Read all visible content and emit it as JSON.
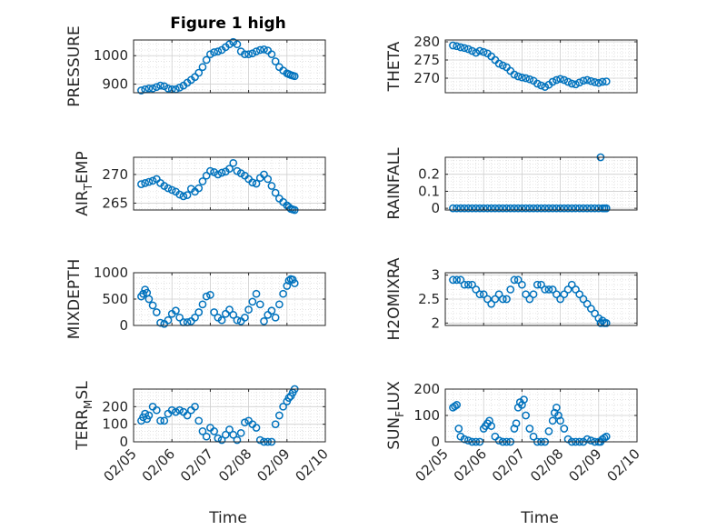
{
  "figure": {
    "title": "Figure 1 high",
    "xlabel": "Time",
    "marker_color": "#0072bd"
  },
  "chart_data": [
    {
      "type": "scatter",
      "ylabel": "PRESSURE",
      "xlim": [
        0,
        5
      ],
      "ylim": [
        870,
        1055
      ],
      "yticks": [
        900,
        1000
      ],
      "x_tick_labels": [
        "02/05",
        "02/06",
        "02/07",
        "02/08",
        "02/09",
        "02/10"
      ],
      "grid": true,
      "x": [
        0.2,
        0.3,
        0.4,
        0.5,
        0.6,
        0.7,
        0.8,
        0.9,
        1.0,
        1.1,
        1.2,
        1.3,
        1.4,
        1.5,
        1.6,
        1.7,
        1.8,
        1.9,
        2.0,
        2.1,
        2.2,
        2.3,
        2.4,
        2.5,
        2.6,
        2.7,
        2.8,
        2.9,
        3.0,
        3.1,
        3.2,
        3.3,
        3.4,
        3.5,
        3.6,
        3.7,
        3.8,
        3.9,
        4.0,
        4.05,
        4.1,
        4.15,
        4.2
      ],
      "y": [
        878,
        882,
        885,
        885,
        890,
        895,
        893,
        885,
        882,
        882,
        888,
        895,
        905,
        915,
        925,
        940,
        960,
        985,
        1005,
        1012,
        1015,
        1020,
        1030,
        1040,
        1048,
        1040,
        1015,
        1005,
        1005,
        1008,
        1015,
        1020,
        1022,
        1018,
        1005,
        980,
        960,
        948,
        938,
        935,
        932,
        930,
        928
      ]
    },
    {
      "type": "scatter",
      "ylabel": "THETA",
      "xlim": [
        0,
        5
      ],
      "ylim": [
        266,
        280.5
      ],
      "yticks": [
        270,
        275,
        280
      ],
      "x_tick_labels": [
        "02/05",
        "02/06",
        "02/07",
        "02/08",
        "02/09",
        "02/10"
      ],
      "grid": true,
      "x": [
        0.2,
        0.3,
        0.4,
        0.5,
        0.6,
        0.7,
        0.8,
        0.9,
        1.0,
        1.1,
        1.2,
        1.3,
        1.4,
        1.5,
        1.6,
        1.7,
        1.8,
        1.9,
        2.0,
        2.1,
        2.2,
        2.3,
        2.4,
        2.5,
        2.6,
        2.7,
        2.8,
        2.9,
        3.0,
        3.1,
        3.2,
        3.3,
        3.4,
        3.5,
        3.6,
        3.7,
        3.8,
        3.9,
        4.0,
        4.1,
        4.2
      ],
      "y": [
        279,
        278.8,
        278.5,
        278.3,
        278,
        277.5,
        277,
        277.5,
        277.2,
        276.8,
        276,
        275,
        274,
        273.5,
        273,
        272,
        271,
        270.5,
        270.2,
        270,
        269.7,
        269.3,
        268.5,
        268,
        267.6,
        268.2,
        269,
        269.5,
        269.8,
        269.5,
        269,
        268.5,
        268.3,
        268.8,
        269.3,
        269.5,
        269.2,
        268.9,
        268.7,
        269,
        269.1
      ]
    },
    {
      "type": "scatter",
      "ylabel": "AIR",
      "ylabel_sub": "T",
      "ylabel_tail": "EMP",
      "xlim": [
        0,
        5
      ],
      "ylim": [
        263.8,
        273
      ],
      "yticks": [
        265,
        270
      ],
      "x_tick_labels": [
        "02/05",
        "02/06",
        "02/07",
        "02/08",
        "02/09",
        "02/10"
      ],
      "grid": true,
      "x": [
        0.2,
        0.3,
        0.4,
        0.5,
        0.6,
        0.7,
        0.8,
        0.9,
        1.0,
        1.1,
        1.2,
        1.3,
        1.4,
        1.5,
        1.6,
        1.7,
        1.8,
        1.9,
        2.0,
        2.1,
        2.2,
        2.3,
        2.4,
        2.5,
        2.6,
        2.7,
        2.8,
        2.9,
        3.0,
        3.1,
        3.2,
        3.3,
        3.4,
        3.5,
        3.6,
        3.7,
        3.8,
        3.9,
        4.0,
        4.05,
        4.1,
        4.15,
        4.2
      ],
      "y": [
        268.3,
        268.5,
        268.7,
        268.9,
        269.2,
        268.5,
        268,
        267.6,
        267.3,
        267,
        266.5,
        266.2,
        266.4,
        267.5,
        267,
        267.6,
        268.8,
        269.8,
        270.6,
        270.4,
        270,
        270.3,
        270.5,
        271,
        272,
        270.6,
        270.2,
        269.8,
        269.2,
        268.6,
        268.4,
        269.4,
        270,
        269.2,
        268,
        266.8,
        265.8,
        265.2,
        264.6,
        264.3,
        264,
        263.9,
        263.8
      ]
    },
    {
      "type": "scatter",
      "ylabel": "RAINFALL",
      "xlim": [
        0,
        5
      ],
      "ylim": [
        -0.01,
        0.3
      ],
      "yticks": [
        0,
        0.1,
        0.2
      ],
      "x_tick_labels": [
        "02/05",
        "02/06",
        "02/07",
        "02/08",
        "02/09",
        "02/10"
      ],
      "grid": true,
      "x": [
        0.2,
        0.3,
        0.4,
        0.5,
        0.6,
        0.7,
        0.8,
        0.9,
        1.0,
        1.1,
        1.2,
        1.3,
        1.4,
        1.5,
        1.6,
        1.7,
        1.8,
        1.9,
        2.0,
        2.1,
        2.2,
        2.3,
        2.4,
        2.5,
        2.6,
        2.7,
        2.8,
        2.9,
        3.0,
        3.1,
        3.2,
        3.3,
        3.4,
        3.5,
        3.6,
        3.7,
        3.8,
        3.9,
        4.0,
        4.05,
        4.1,
        4.15,
        4.2
      ],
      "y": [
        0,
        0,
        0,
        0,
        0,
        0,
        0,
        0,
        0,
        0,
        0,
        0,
        0,
        0,
        0,
        0,
        0,
        0,
        0,
        0,
        0,
        0,
        0,
        0,
        0,
        0,
        0,
        0,
        0,
        0,
        0,
        0,
        0,
        0,
        0,
        0,
        0,
        0,
        0,
        0.3,
        0,
        0,
        0
      ]
    },
    {
      "type": "scatter",
      "ylabel": "MIXDEPTH",
      "xlim": [
        0,
        5
      ],
      "ylim": [
        0,
        1000
      ],
      "yticks": [
        0,
        500,
        1000
      ],
      "x_tick_labels": [
        "02/05",
        "02/06",
        "02/07",
        "02/08",
        "02/09",
        "02/10"
      ],
      "grid": true,
      "x": [
        0.2,
        0.25,
        0.3,
        0.35,
        0.4,
        0.5,
        0.6,
        0.7,
        0.8,
        0.9,
        1.0,
        1.1,
        1.2,
        1.3,
        1.4,
        1.5,
        1.6,
        1.7,
        1.8,
        1.9,
        2.0,
        2.1,
        2.2,
        2.3,
        2.4,
        2.5,
        2.6,
        2.7,
        2.8,
        2.9,
        3.0,
        3.1,
        3.2,
        3.3,
        3.4,
        3.5,
        3.6,
        3.7,
        3.8,
        3.9,
        4.0,
        4.05,
        4.1,
        4.15,
        4.2
      ],
      "y": [
        550,
        600,
        680,
        620,
        500,
        380,
        250,
        50,
        30,
        100,
        220,
        280,
        150,
        60,
        60,
        80,
        150,
        250,
        400,
        550,
        580,
        250,
        150,
        100,
        220,
        300,
        200,
        100,
        80,
        150,
        300,
        450,
        600,
        400,
        80,
        200,
        280,
        150,
        400,
        600,
        750,
        850,
        880,
        870,
        800
      ]
    },
    {
      "type": "scatter",
      "ylabel": "H2OMIXRA",
      "xlim": [
        0,
        5
      ],
      "ylim": [
        1.95,
        3.05
      ],
      "yticks": [
        2,
        2.5,
        3
      ],
      "x_tick_labels": [
        "02/05",
        "02/06",
        "02/07",
        "02/08",
        "02/09",
        "02/10"
      ],
      "grid": true,
      "x": [
        0.2,
        0.3,
        0.4,
        0.5,
        0.6,
        0.7,
        0.8,
        0.9,
        1.0,
        1.1,
        1.2,
        1.3,
        1.4,
        1.5,
        1.6,
        1.7,
        1.8,
        1.9,
        2.0,
        2.1,
        2.2,
        2.3,
        2.4,
        2.5,
        2.6,
        2.7,
        2.8,
        2.9,
        3.0,
        3.1,
        3.2,
        3.3,
        3.4,
        3.5,
        3.6,
        3.7,
        3.8,
        3.9,
        4.0,
        4.05,
        4.1,
        4.15,
        4.2
      ],
      "y": [
        2.9,
        2.9,
        2.9,
        2.8,
        2.8,
        2.8,
        2.7,
        2.6,
        2.6,
        2.5,
        2.4,
        2.5,
        2.6,
        2.5,
        2.5,
        2.7,
        2.9,
        2.9,
        2.8,
        2.6,
        2.5,
        2.6,
        2.8,
        2.8,
        2.7,
        2.7,
        2.7,
        2.6,
        2.5,
        2.6,
        2.7,
        2.8,
        2.7,
        2.6,
        2.5,
        2.4,
        2.3,
        2.2,
        2.1,
        2.0,
        2.05,
        2.0,
        2.0
      ]
    },
    {
      "type": "scatter",
      "ylabel": "TERR",
      "ylabel_sub": "M",
      "ylabel_tail": "SL",
      "xlim": [
        0,
        5
      ],
      "ylim": [
        0,
        300
      ],
      "yticks": [
        0,
        100,
        200
      ],
      "x_tick_labels": [
        "02/05",
        "02/06",
        "02/07",
        "02/08",
        "02/09",
        "02/10"
      ],
      "grid": true,
      "x": [
        0.2,
        0.25,
        0.3,
        0.35,
        0.4,
        0.5,
        0.6,
        0.7,
        0.8,
        0.9,
        1.0,
        1.1,
        1.2,
        1.3,
        1.4,
        1.5,
        1.6,
        1.7,
        1.8,
        1.9,
        2.0,
        2.1,
        2.2,
        2.3,
        2.4,
        2.5,
        2.6,
        2.7,
        2.8,
        2.9,
        3.0,
        3.1,
        3.2,
        3.3,
        3.4,
        3.5,
        3.6,
        3.7,
        3.8,
        3.9,
        4.0,
        4.05,
        4.1,
        4.15,
        4.2
      ],
      "y": [
        120,
        140,
        160,
        130,
        150,
        200,
        180,
        120,
        120,
        160,
        180,
        170,
        180,
        170,
        150,
        180,
        200,
        120,
        60,
        30,
        80,
        60,
        20,
        10,
        40,
        70,
        40,
        10,
        50,
        110,
        120,
        100,
        80,
        10,
        0,
        0,
        0,
        100,
        150,
        200,
        230,
        250,
        260,
        280,
        300
      ]
    },
    {
      "type": "scatter",
      "ylabel": "SUN",
      "ylabel_sub": "F",
      "ylabel_tail": "LUX",
      "xlim": [
        0,
        5
      ],
      "ylim": [
        0,
        200
      ],
      "yticks": [
        0,
        100,
        200
      ],
      "x_tick_labels": [
        "02/05",
        "02/06",
        "02/07",
        "02/08",
        "02/09",
        "02/10"
      ],
      "grid": true,
      "x": [
        0.2,
        0.25,
        0.3,
        0.35,
        0.4,
        0.5,
        0.6,
        0.7,
        0.8,
        0.9,
        1.0,
        1.05,
        1.1,
        1.15,
        1.2,
        1.3,
        1.4,
        1.5,
        1.6,
        1.7,
        1.8,
        1.85,
        1.9,
        1.95,
        2.0,
        2.05,
        2.1,
        2.2,
        2.3,
        2.4,
        2.5,
        2.6,
        2.7,
        2.8,
        2.85,
        2.9,
        2.95,
        3.0,
        3.1,
        3.2,
        3.3,
        3.4,
        3.5,
        3.6,
        3.7,
        3.8,
        3.9,
        4.0,
        4.05,
        4.1,
        4.15,
        4.2
      ],
      "y": [
        130,
        135,
        140,
        50,
        20,
        10,
        5,
        0,
        0,
        0,
        50,
        60,
        70,
        80,
        60,
        20,
        5,
        0,
        0,
        0,
        50,
        70,
        130,
        150,
        140,
        160,
        100,
        50,
        20,
        0,
        0,
        0,
        40,
        80,
        110,
        130,
        100,
        80,
        50,
        10,
        0,
        0,
        0,
        0,
        10,
        5,
        0,
        0,
        0,
        10,
        15,
        20
      ]
    }
  ]
}
